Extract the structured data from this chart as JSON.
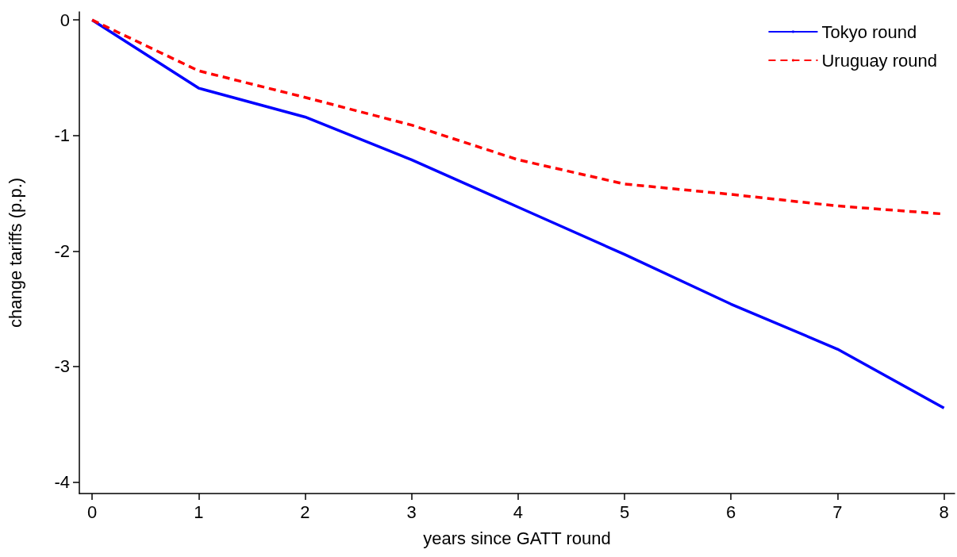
{
  "chart_data": {
    "type": "line",
    "xlabel": "years since GATT round",
    "ylabel": "change tariffs (p.p.)",
    "x": [
      0,
      1,
      2,
      3,
      4,
      5,
      6,
      7,
      8
    ],
    "series": [
      {
        "name": "Tokyo round",
        "color": "#0000ff",
        "line_style": "solid",
        "values": [
          0,
          -0.59,
          -0.84,
          -1.21,
          -1.62,
          -2.03,
          -2.46,
          -2.85,
          -3.36
        ]
      },
      {
        "name": "Uruguay round",
        "color": "#ff0000",
        "line_style": "dashed",
        "values": [
          0,
          -0.44,
          -0.67,
          -0.91,
          -1.21,
          -1.42,
          -1.51,
          -1.61,
          -1.68
        ]
      }
    ],
    "xlim": [
      -0.12,
      8.1
    ],
    "xticks": [
      0,
      1,
      2,
      3,
      4,
      5,
      6,
      7,
      8
    ],
    "ylim": [
      -4.1,
      0.07
    ],
    "yticks": [
      -4,
      -3,
      -2,
      -1,
      0
    ],
    "grid": false,
    "legend": "top right",
    "marker": "none"
  }
}
